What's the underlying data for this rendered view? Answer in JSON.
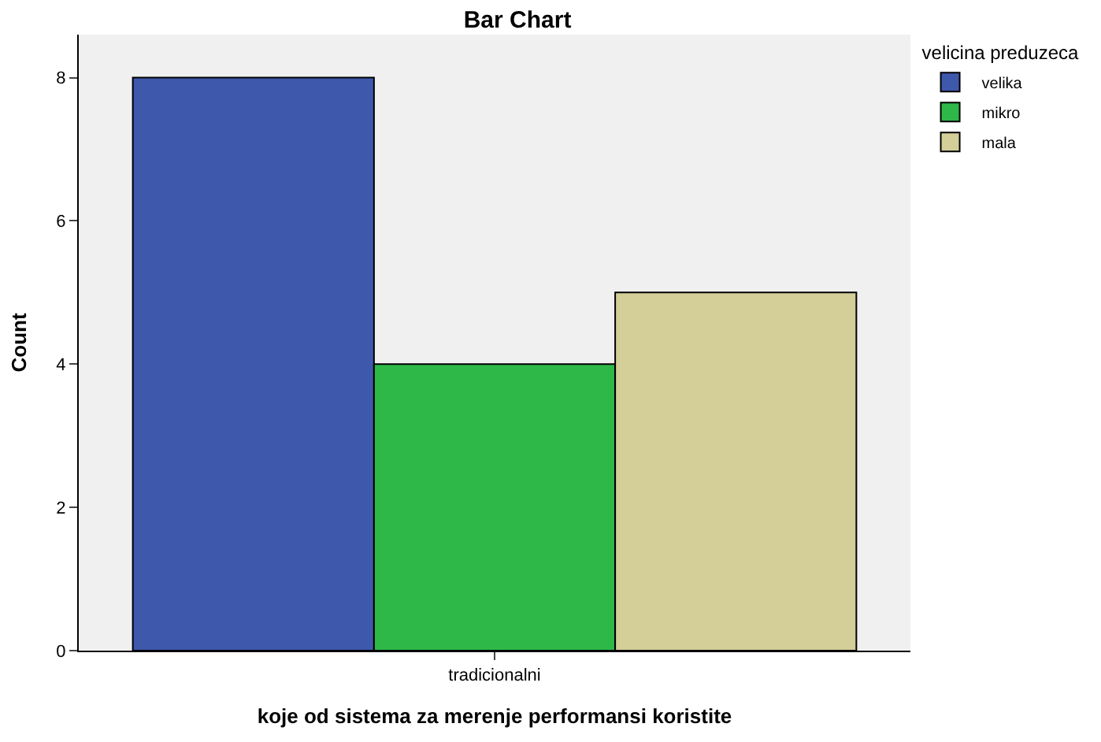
{
  "chart_data": {
    "type": "bar",
    "title": "Bar Chart",
    "xlabel": "koje od sistema za merenje performansi koristite",
    "ylabel": "Count",
    "legend_title": "velicina preduzeca",
    "categories": [
      "tradicionalni"
    ],
    "series": [
      {
        "name": "velika",
        "color": "#3e58ac",
        "values": [
          8
        ]
      },
      {
        "name": "mikro",
        "color": "#2eb848",
        "values": [
          4
        ]
      },
      {
        "name": "mala",
        "color": "#d4cf98",
        "values": [
          5
        ]
      }
    ],
    "ylim": [
      0,
      8.6
    ],
    "yticks": [
      0,
      2,
      4,
      6,
      8
    ],
    "grid": false,
    "legend": "top right"
  }
}
